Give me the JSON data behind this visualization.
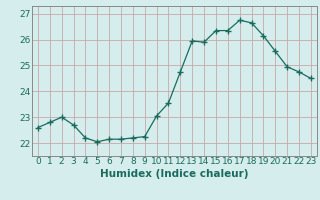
{
  "x": [
    0,
    1,
    2,
    3,
    4,
    5,
    6,
    7,
    8,
    9,
    10,
    11,
    12,
    13,
    14,
    15,
    16,
    17,
    18,
    19,
    20,
    21,
    22,
    23
  ],
  "y": [
    22.6,
    22.8,
    23.0,
    22.7,
    22.2,
    22.05,
    22.15,
    22.15,
    22.2,
    22.25,
    23.05,
    23.55,
    24.75,
    25.95,
    25.9,
    26.35,
    26.35,
    26.75,
    26.65,
    26.15,
    25.55,
    24.95,
    24.75,
    24.5
  ],
  "ylim": [
    21.5,
    27.3
  ],
  "xlim": [
    -0.5,
    23.5
  ],
  "yticks": [
    22,
    23,
    24,
    25,
    26,
    27
  ],
  "xticks": [
    0,
    1,
    2,
    3,
    4,
    5,
    6,
    7,
    8,
    9,
    10,
    11,
    12,
    13,
    14,
    15,
    16,
    17,
    18,
    19,
    20,
    21,
    22,
    23
  ],
  "xlabel": "Humidex (Indice chaleur)",
  "line_color": "#1a6b5e",
  "marker": "+",
  "marker_size": 4,
  "bg_color": "#d5eeed",
  "grid_color": "#c8a8a8",
  "tick_label_fontsize": 6.5,
  "xlabel_fontsize": 7.5,
  "spine_color": "#888888"
}
